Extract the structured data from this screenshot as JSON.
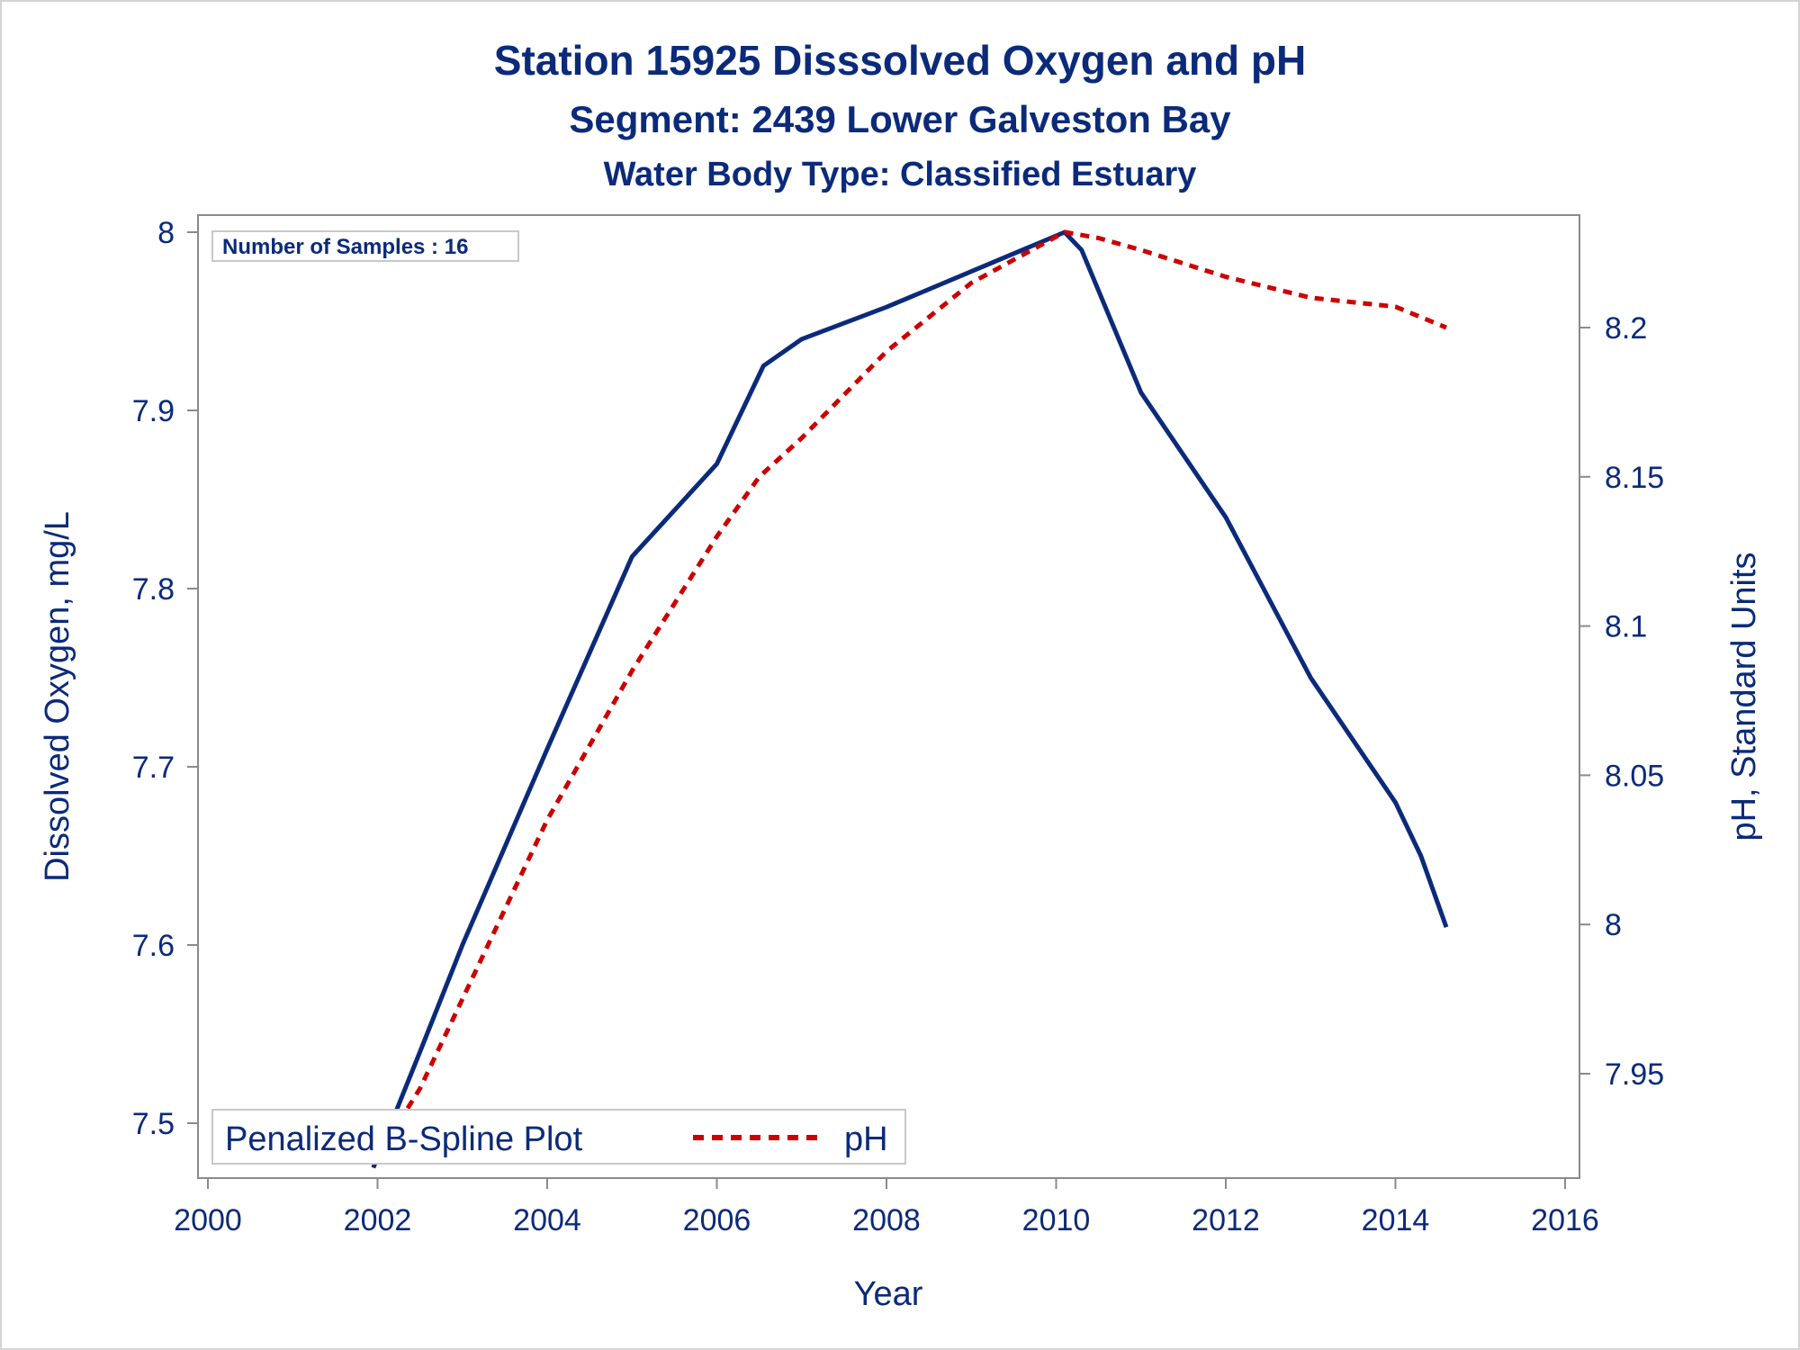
{
  "chart_data": {
    "type": "line",
    "title": "Station 15925   Disssolved Oxygen and pH",
    "subtitle": "Segment: 2439  Lower Galveston Bay",
    "subtitle2": "Water Body Type: Classified Estuary",
    "xlabel": "Year",
    "ylabel": "Dissolved Oxygen, mg/L",
    "y2label": "pH, Standard Units",
    "xlim": [
      2000,
      2016
    ],
    "ylim": [
      7.47,
      8.01
    ],
    "y2lim": [
      7.92,
      8.235
    ],
    "xticks": [
      "2000",
      "2002",
      "2004",
      "2006",
      "2008",
      "2010",
      "2012",
      "2014",
      "2016"
    ],
    "yticks": [
      "7.5",
      "7.6",
      "7.7",
      "7.8",
      "7.9",
      "8"
    ],
    "y2ticks": [
      "7.95",
      "8",
      "8.05",
      "8.1",
      "8.15",
      "8.2"
    ],
    "grid": false,
    "annotation": "Number of Samples : 16",
    "legend": {
      "position": "bottom-left",
      "title": "Penalized B-Spline Plot"
    },
    "series": [
      {
        "name": "Dissolved Oxygen",
        "axis": "left",
        "color": "#0b2a7a",
        "style": "solid",
        "x": [
          2001.95,
          2002.5,
          2003.0,
          2004.0,
          2005.0,
          2006.0,
          2006.55,
          2007.0,
          2008.0,
          2009.0,
          2010.1,
          2010.3,
          2011.0,
          2012.0,
          2013.0,
          2014.0,
          2014.3,
          2014.6
        ],
        "values": [
          7.475,
          7.54,
          7.6,
          7.71,
          7.818,
          7.87,
          7.925,
          7.94,
          7.958,
          7.978,
          8.0,
          7.99,
          7.91,
          7.84,
          7.75,
          7.68,
          7.65,
          7.61
        ]
      },
      {
        "name": "pH",
        "axis": "right",
        "color": "#cc0000",
        "style": "dashed",
        "x": [
          2001.95,
          2002.5,
          2003.0,
          2004.0,
          2005.0,
          2006.0,
          2006.5,
          2007.0,
          2008.0,
          2009.0,
          2010.1,
          2010.5,
          2011.0,
          2012.0,
          2013.0,
          2014.0,
          2014.6
        ],
        "values": [
          7.92,
          7.945,
          7.975,
          8.035,
          8.085,
          8.13,
          8.15,
          8.163,
          8.192,
          8.215,
          8.232,
          8.23,
          8.226,
          8.217,
          8.21,
          8.207,
          8.2
        ]
      }
    ]
  }
}
